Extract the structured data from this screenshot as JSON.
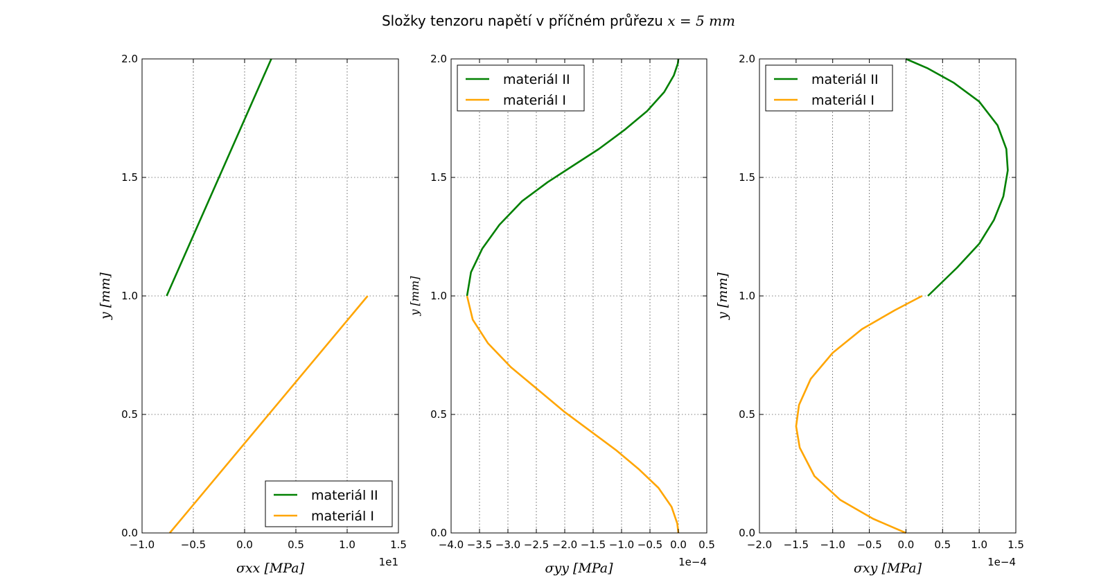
{
  "figure": {
    "title_text": "Složky tenzoru napětí v příčném průřezu ",
    "title_math": "x = 5 mm"
  },
  "colors": {
    "material_II": "#008000",
    "material_I": "#FFA500",
    "grid": "#000000"
  },
  "chart_data": [
    {
      "type": "line",
      "xlabel": "σxx [MPa]",
      "ylabel": "y [mm]",
      "xlim": [
        -1.0,
        1.5
      ],
      "ylim": [
        0.0,
        2.0
      ],
      "x_ticks": [
        -1.0,
        -0.5,
        0.0,
        0.5,
        1.0,
        1.5
      ],
      "x_tick_labels": [
        "−1.0",
        "−0.5",
        "0.0",
        "0.5",
        "1.0",
        "1.5"
      ],
      "y_ticks": [
        0.0,
        0.5,
        1.0,
        1.5,
        2.0
      ],
      "y_tick_labels": [
        "0.0",
        "0.5",
        "1.0",
        "1.5",
        "2.0"
      ],
      "offset_text": "1e1",
      "grid": true,
      "legend_position": "lower-right",
      "series": [
        {
          "name": "materiál II",
          "color": "#008000",
          "x": [
            -0.76,
            0.26
          ],
          "y": [
            1.0,
            2.0
          ]
        },
        {
          "name": "materiál I",
          "color": "#FFA500",
          "x": [
            -0.73,
            1.2
          ],
          "y": [
            0.0,
            1.0
          ]
        }
      ]
    },
    {
      "type": "line",
      "xlabel": "σyy [MPa]",
      "ylabel": "y [mm]",
      "xlim": [
        -4.0,
        0.5
      ],
      "ylim": [
        0.0,
        2.0
      ],
      "x_ticks": [
        -4.0,
        -3.5,
        -3.0,
        -2.5,
        -2.0,
        -1.5,
        -1.0,
        -0.5,
        0.0,
        0.5
      ],
      "x_tick_labels": [
        "−4.0",
        "−3.5",
        "−3.0",
        "−2.5",
        "−2.0",
        "−1.5",
        "−1.0",
        "−0.5",
        "0.0",
        "0.5"
      ],
      "y_ticks": [
        0.0,
        0.5,
        1.0,
        1.5,
        2.0
      ],
      "y_tick_labels": [
        "0.0",
        "0.5",
        "1.0",
        "1.5",
        "2.0"
      ],
      "offset_text": "1e−4",
      "grid": true,
      "legend_position": "upper-left",
      "series": [
        {
          "name": "materiál II",
          "color": "#008000",
          "x": [
            -3.72,
            -3.65,
            -3.45,
            -3.15,
            -2.75,
            -2.3,
            -1.85,
            -1.4,
            -0.95,
            -0.55,
            -0.25,
            -0.08,
            -0.01,
            0.0
          ],
          "y": [
            1.0,
            1.1,
            1.2,
            1.3,
            1.4,
            1.48,
            1.55,
            1.62,
            1.7,
            1.78,
            1.86,
            1.93,
            1.98,
            2.0
          ]
        },
        {
          "name": "materiál I",
          "color": "#FFA500",
          "x": [
            -3.72,
            -3.62,
            -3.35,
            -2.95,
            -2.45,
            -2.0,
            -1.55,
            -1.1,
            -0.7,
            -0.35,
            -0.12,
            -0.02,
            0.0
          ],
          "y": [
            1.0,
            0.9,
            0.8,
            0.7,
            0.6,
            0.51,
            0.43,
            0.35,
            0.27,
            0.19,
            0.11,
            0.04,
            0.0
          ]
        }
      ]
    },
    {
      "type": "line",
      "xlabel": "σxy [MPa]",
      "ylabel": "y [mm]",
      "xlim": [
        -2.0,
        1.5
      ],
      "ylim": [
        0.0,
        2.0
      ],
      "x_ticks": [
        -2.0,
        -1.5,
        -1.0,
        -0.5,
        0.0,
        0.5,
        1.0,
        1.5
      ],
      "x_tick_labels": [
        "−2.0",
        "−1.5",
        "−1.0",
        "−0.5",
        "0.0",
        "0.5",
        "1.0",
        "1.5"
      ],
      "y_ticks": [
        0.0,
        0.5,
        1.0,
        1.5,
        2.0
      ],
      "y_tick_labels": [
        "0.0",
        "0.5",
        "1.0",
        "1.5",
        "2.0"
      ],
      "offset_text": "1e−4",
      "grid": true,
      "legend_position": "upper-left",
      "series": [
        {
          "name": "materiál II",
          "color": "#008000",
          "x": [
            0.3,
            0.7,
            1.0,
            1.2,
            1.33,
            1.39,
            1.37,
            1.25,
            1.0,
            0.65,
            0.3,
            0.0
          ],
          "y": [
            1.0,
            1.12,
            1.22,
            1.32,
            1.42,
            1.53,
            1.62,
            1.72,
            1.82,
            1.9,
            1.96,
            2.0
          ]
        },
        {
          "name": "materiál I",
          "color": "#FFA500",
          "x": [
            0.22,
            -0.15,
            -0.6,
            -1.0,
            -1.3,
            -1.46,
            -1.5,
            -1.45,
            -1.25,
            -0.9,
            -0.45,
            0.0
          ],
          "y": [
            1.0,
            0.94,
            0.86,
            0.76,
            0.65,
            0.54,
            0.45,
            0.36,
            0.24,
            0.14,
            0.06,
            0.0
          ]
        }
      ]
    }
  ]
}
